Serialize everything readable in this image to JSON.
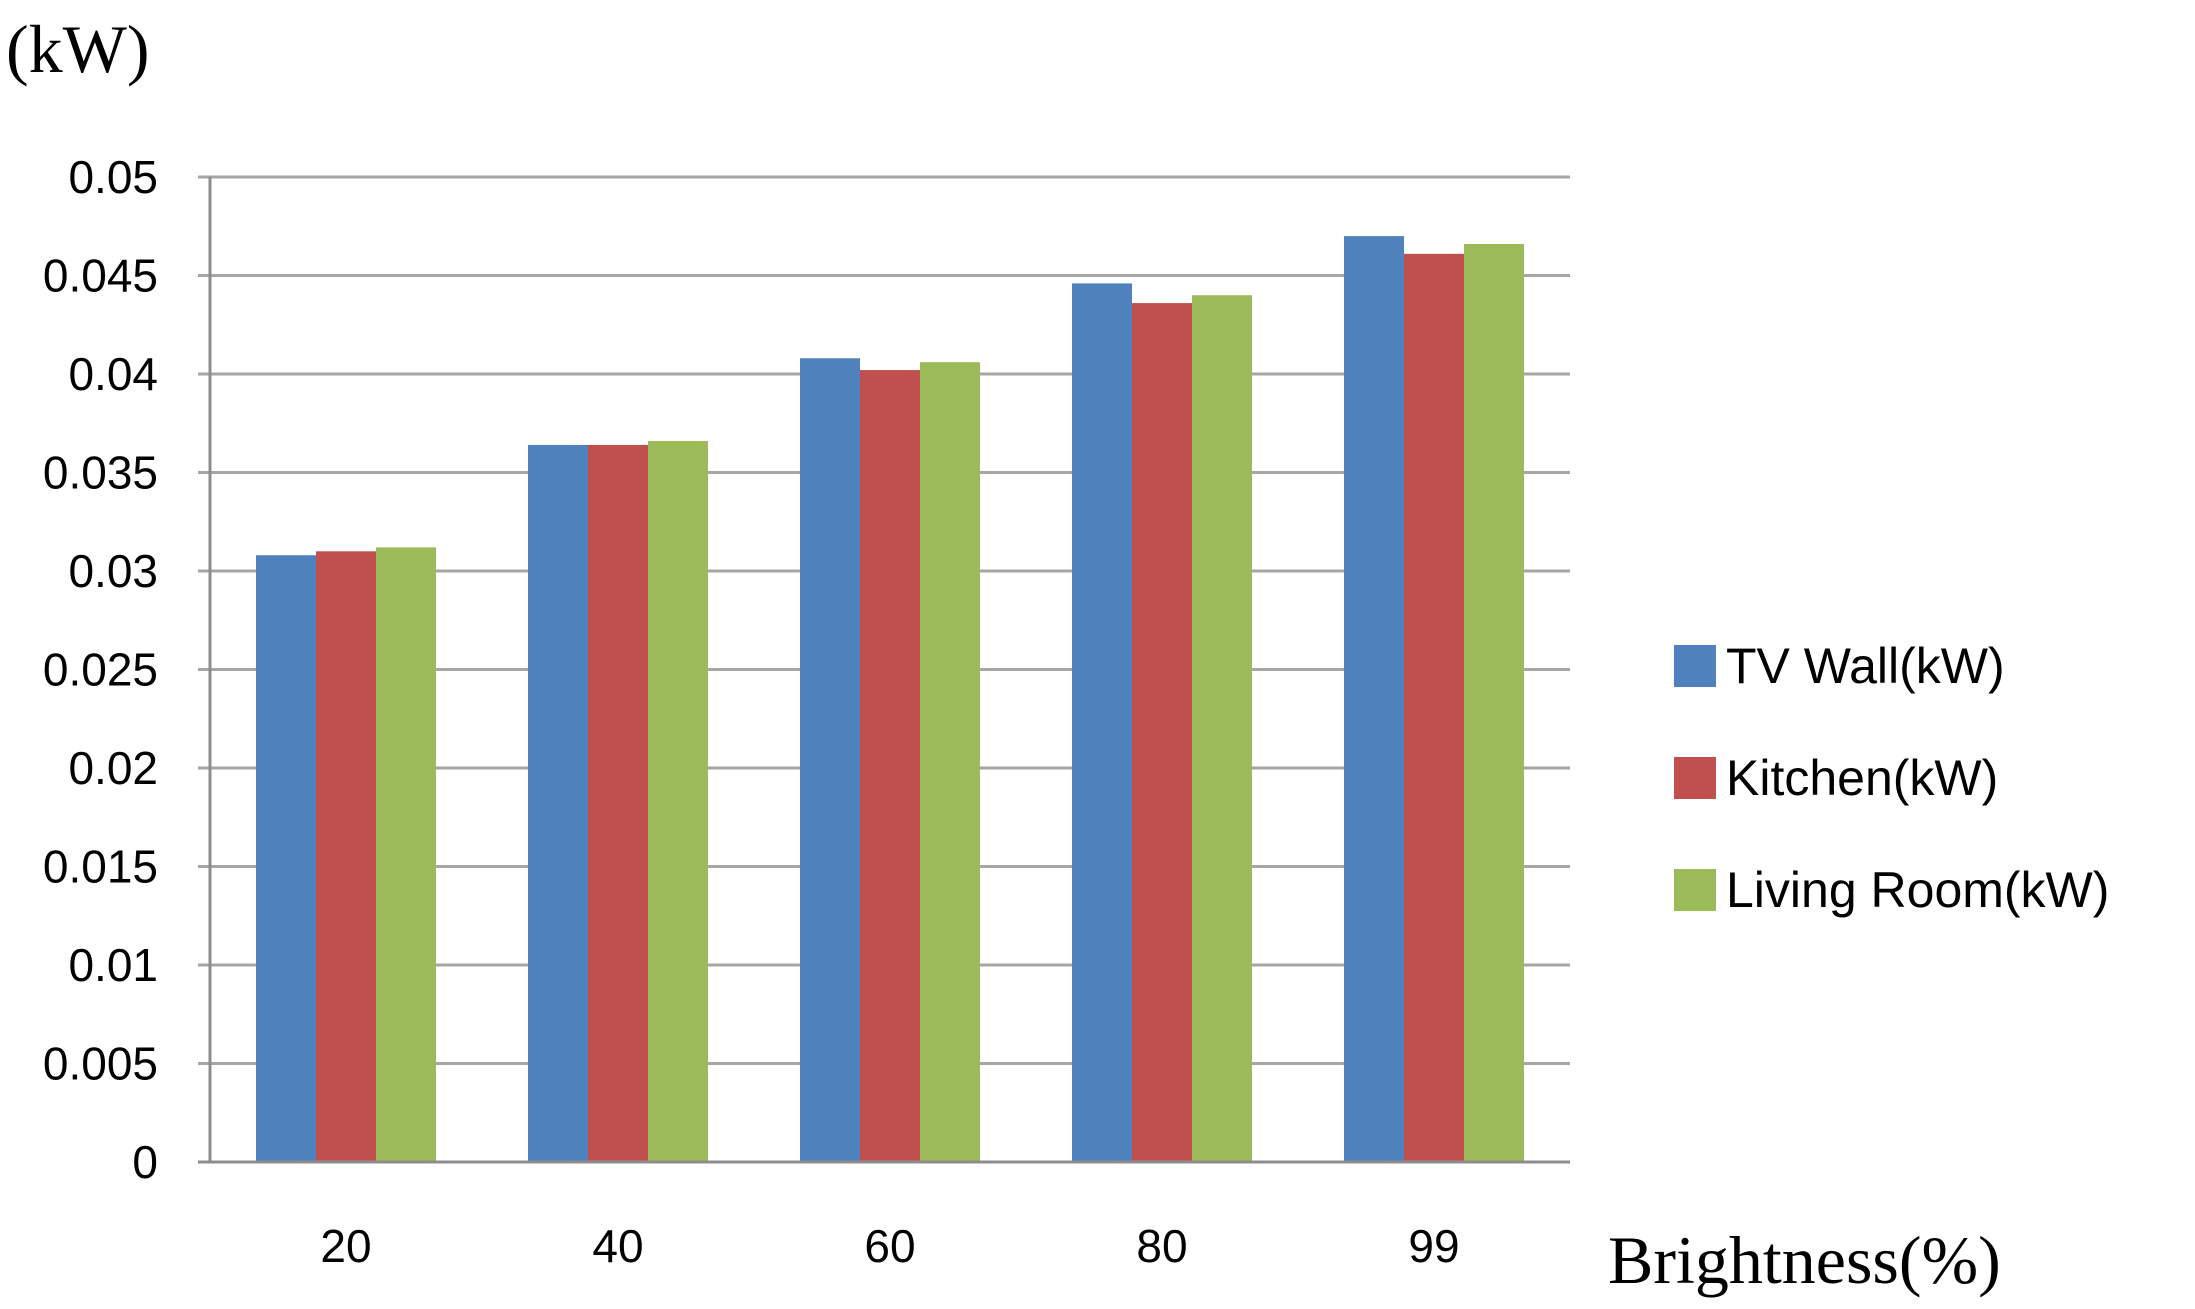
{
  "chart_data": {
    "type": "bar",
    "title": "",
    "ylabel": "(kW)",
    "xlabel": "Brightness(%)",
    "categories": [
      "20",
      "40",
      "60",
      "80",
      "99"
    ],
    "series": [
      {
        "name": "TV Wall(kW)",
        "color": "#4f81bd",
        "values": [
          0.0308,
          0.0364,
          0.0408,
          0.0446,
          0.047
        ]
      },
      {
        "name": "Kitchen(kW)",
        "color": "#c0504d",
        "values": [
          0.031,
          0.0364,
          0.0402,
          0.0436,
          0.0461
        ]
      },
      {
        "name": "Living Room(kW)",
        "color": "#9bbb59",
        "values": [
          0.0312,
          0.0366,
          0.0406,
          0.044,
          0.0466
        ]
      }
    ],
    "ylim": [
      0,
      0.05
    ],
    "yticks": [
      "0",
      "0.005",
      "0.01",
      "0.015",
      "0.02",
      "0.025",
      "0.03",
      "0.035",
      "0.04",
      "0.045",
      "0.05"
    ],
    "grid": true,
    "legend_position": "right"
  }
}
